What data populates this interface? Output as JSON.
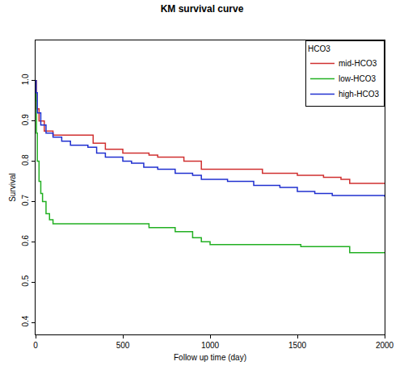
{
  "chart_data": {
    "type": "step",
    "title": "KM survival curve",
    "x_label": "Follow up time (day)",
    "y_label": "Survival",
    "legend_title": "HCO3",
    "legend": "top-right",
    "grid": false,
    "xlim": [
      0,
      2000
    ],
    "xticks": [
      0,
      500,
      1000,
      1500,
      2000
    ],
    "ylim": [
      0.37,
      1.1
    ],
    "yticks": [
      0.4,
      0.5,
      0.6,
      0.7,
      0.8,
      0.9,
      {
        "value": 1,
        "label": "1.0"
      }
    ],
    "series": [
      {
        "name": "mid-HCO3",
        "color": "#d03030",
        "x": [
          0,
          5,
          20,
          50,
          100,
          300,
          330,
          400,
          500,
          650,
          700,
          850,
          950,
          1300,
          1500,
          1650,
          1750,
          1800,
          2000
        ],
        "values": [
          1.0,
          0.93,
          0.9,
          0.875,
          0.865,
          0.865,
          0.845,
          0.83,
          0.82,
          0.815,
          0.81,
          0.8,
          0.78,
          0.77,
          0.765,
          0.76,
          0.755,
          0.745,
          0.745
        ]
      },
      {
        "name": "low-HCO3",
        "color": "#22b022",
        "x": [
          0,
          2,
          5,
          10,
          20,
          30,
          40,
          60,
          80,
          100,
          650,
          800,
          900,
          950,
          1000,
          1520,
          1800,
          2000
        ],
        "values": [
          1.0,
          0.95,
          0.87,
          0.8,
          0.75,
          0.72,
          0.7,
          0.67,
          0.655,
          0.645,
          0.635,
          0.625,
          0.61,
          0.6,
          0.593,
          0.588,
          0.573,
          0.573
        ]
      },
      {
        "name": "high-HCO3",
        "color": "#2030d0",
        "x": [
          0,
          3,
          10,
          30,
          60,
          100,
          150,
          200,
          300,
          350,
          400,
          500,
          550,
          620,
          700,
          800,
          900,
          950,
          1100,
          1250,
          1400,
          1500,
          1600,
          1700,
          2000
        ],
        "values": [
          1.0,
          0.97,
          0.92,
          0.89,
          0.87,
          0.86,
          0.85,
          0.84,
          0.835,
          0.82,
          0.81,
          0.8,
          0.795,
          0.785,
          0.78,
          0.77,
          0.765,
          0.755,
          0.75,
          0.74,
          0.735,
          0.725,
          0.72,
          0.715,
          0.712
        ]
      }
    ]
  }
}
